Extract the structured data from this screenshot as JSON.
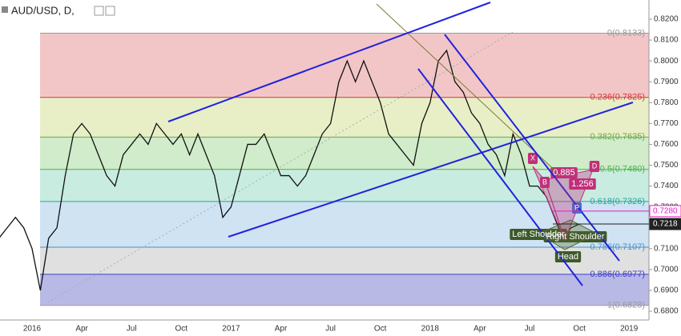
{
  "chart_data": {
    "type": "line",
    "title": "AUD/USD, D,",
    "categories": [
      null,
      null,
      null,
      null,
      "2016",
      null,
      null,
      null,
      null,
      null,
      "Apr",
      null,
      null,
      null,
      null,
      null,
      "Jul",
      null,
      null,
      null,
      null,
      null,
      "Oct",
      null,
      null,
      null,
      null,
      null,
      "2017",
      null,
      null,
      null,
      null,
      null,
      "Apr",
      null,
      null,
      null,
      null,
      null,
      "Jul",
      null,
      null,
      null,
      null,
      null,
      "Oct",
      null,
      null,
      null,
      null,
      null,
      "2018",
      null,
      null,
      null,
      null,
      null,
      "Apr",
      null,
      null,
      null,
      null,
      null,
      "Jul",
      null,
      null,
      null,
      null,
      null,
      "Oct",
      null,
      null,
      null,
      null,
      null,
      "2019"
    ],
    "series": [
      {
        "name": "AUD/USD",
        "color": "#111111",
        "values": [
          0.715,
          0.72,
          0.725,
          0.72,
          0.71,
          0.69,
          0.715,
          0.72,
          0.745,
          0.765,
          0.77,
          0.765,
          0.755,
          0.745,
          0.74,
          0.755,
          0.76,
          0.765,
          0.76,
          0.77,
          0.765,
          0.76,
          0.765,
          0.755,
          0.765,
          0.755,
          0.745,
          0.725,
          0.73,
          0.745,
          0.76,
          0.76,
          0.765,
          0.755,
          0.745,
          0.745,
          0.74,
          0.745,
          0.755,
          0.765,
          0.77,
          0.79,
          0.8,
          0.79,
          0.8,
          0.79,
          0.78,
          0.765,
          0.76,
          0.755,
          0.75,
          0.77,
          0.78,
          0.8,
          0.805,
          0.79,
          0.785,
          0.775,
          0.77,
          0.76,
          0.755,
          0.745,
          0.765,
          0.755,
          0.74,
          0.74,
          0.735,
          0.725,
          0.715,
          0.72,
          0.7218,
          null,
          null,
          null,
          null,
          null,
          null
        ]
      }
    ],
    "ylim": [
      0.6758,
      0.8292
    ],
    "yticks": [
      {
        "value": 0.68,
        "label": "0.6800"
      },
      {
        "value": 0.69,
        "label": "0.6900"
      },
      {
        "value": 0.7,
        "label": "0.7000"
      },
      {
        "value": 0.71,
        "label": "0.7100"
      },
      {
        "value": 0.72,
        "label": "0.7200"
      },
      {
        "value": 0.73,
        "label": "0.7300"
      },
      {
        "value": 0.74,
        "label": "0.7400"
      },
      {
        "value": 0.75,
        "label": "0.7500"
      },
      {
        "value": 0.76,
        "label": "0.7600"
      },
      {
        "value": 0.77,
        "label": "0.7700"
      },
      {
        "value": 0.78,
        "label": "0.7800"
      },
      {
        "value": 0.79,
        "label": "0.7900"
      },
      {
        "value": 0.8,
        "label": "0.8000"
      },
      {
        "value": 0.81,
        "label": "0.8100"
      },
      {
        "value": 0.82,
        "label": "0.8200"
      }
    ],
    "fib_levels": [
      {
        "value": 0.8133,
        "label": "0(0.8133)",
        "color": "#9a9a9a",
        "fill": "#f2c6c6"
      },
      {
        "value": 0.7825,
        "label": "0.236(0.7825)",
        "color": "#d23b3b",
        "fill": "#e8efc6"
      },
      {
        "value": 0.7635,
        "label": "0.382(0.7635)",
        "color": "#6aa84f",
        "fill": "#d0ecca"
      },
      {
        "value": 0.748,
        "label": "0.5(0.7480)",
        "color": "#4caf50",
        "fill": "#c9ece0"
      },
      {
        "value": 0.7326,
        "label": "0.618(0.7326)",
        "color": "#26a69a",
        "fill": "#cfe3f3"
      },
      {
        "value": 0.7107,
        "label": "0.786(0.7107)",
        "color": "#4a90c8",
        "fill": "#e0e0e0"
      },
      {
        "value": 0.6977,
        "label": "0.886(0.6977)",
        "color": "#3f3fc8",
        "fill": "#b9b9e6"
      },
      {
        "value": 0.6828,
        "label": "1(0.6828)",
        "color": "#9a9a9a",
        "fill": null
      }
    ],
    "price_markers": [
      {
        "value": 0.728,
        "label": "0.7280",
        "color": "#e020c0"
      },
      {
        "value": 0.7218,
        "label": "0.7218",
        "color": "#222222"
      }
    ],
    "annotations": [
      "X",
      "B",
      "D",
      "P",
      "0.885",
      "1.256",
      "Left Shoulder",
      "Right Shoulder",
      "Head"
    ]
  }
}
